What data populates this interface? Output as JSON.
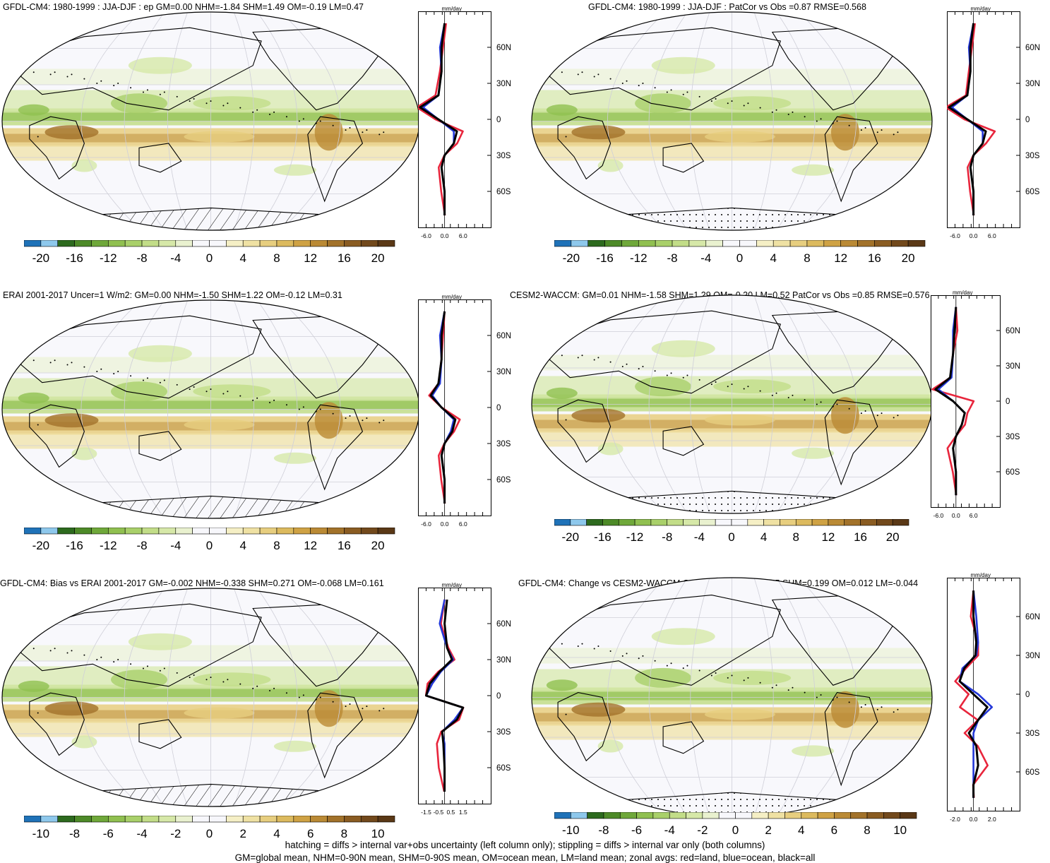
{
  "colors": {
    "negative": [
      "#1f72b8",
      "#8ec8ec",
      "#2d6a1e",
      "#4d8a28",
      "#6fa83a",
      "#90c050",
      "#a9d06a",
      "#c2dd88",
      "#d6e8a8",
      "#e9f1cf",
      "#f7f7fb"
    ],
    "positive": [
      "#f7f7fb",
      "#f5efc5",
      "#efe1a3",
      "#e7ce7f",
      "#dcba5e",
      "#cfa244",
      "#ba8a35",
      "#a2722a",
      "#8a5c22",
      "#72491c",
      "#5a3816"
    ],
    "land": "#e8253c",
    "ocean": "#2438d8",
    "all": "#000000"
  },
  "scales": {
    "main": [
      "-20",
      "-16",
      "-12",
      "-8",
      "-4",
      "0",
      "4",
      "8",
      "12",
      "16",
      "20"
    ],
    "diff": [
      "-10",
      "-8",
      "-6",
      "-4",
      "-2",
      "0",
      "2",
      "4",
      "6",
      "8",
      "10"
    ]
  },
  "lat_labels": [
    "60N",
    "30N",
    "0",
    "30S",
    "60S"
  ],
  "units": "mm/day",
  "panels": [
    {
      "id": "p1",
      "title": "GFDL-CM4: 1980-1999 : JJA-DJF : ep GM=0.00 NHM=-1.84 SHM=1.49 OM=-0.19 LM=0.47",
      "xticks": [
        "-6.0",
        "0.0",
        "6.0"
      ],
      "scale": "main",
      "hatch": true
    },
    {
      "id": "p2",
      "title": "GFDL-CM4: 1980-1999 : JJA-DJF : PatCor vs Obs =0.87 RMSE=0.568",
      "xticks": [
        "-6.0",
        "0.0",
        "6.0"
      ],
      "scale": "main",
      "hatch": false
    },
    {
      "id": "p3",
      "title": "ERAI 2001-2017 Uncer=1 W/m2: GM=0.00 NHM=-1.50 SHM=1.22 OM=-0.12 LM=0.31",
      "xticks": [
        "-6.0",
        "0.0",
        "6.0"
      ],
      "scale": "main",
      "hatch": true
    },
    {
      "id": "p4",
      "title": "CESM2-WACCM: GM=0.01 NHM=-1.58 SHM=1.29 OM=-0.20 LM=0.52 PatCor vs Obs =0.85 RMSE=0.576",
      "xticks": [
        "-6.0",
        "0.0",
        "6.0"
      ],
      "scale": "main",
      "hatch": false
    },
    {
      "id": "p5",
      "title": "GFDL-CM4: Bias vs ERAI 2001-2017 GM=-0.002 NHM=-0.338 SHM=0.271 OM=-0.068 LM=0.161",
      "xticks": [
        "-1.5",
        "-0.5",
        "0.5",
        "1.5"
      ],
      "scale": "diff",
      "hatch": true
    },
    {
      "id": "p6",
      "title": "GFDL-CM4: Change vs CESM2-WACCM GM=-0.004 NHM=-0.255 SHM=0.199 OM=0.012 LM=-0.044",
      "xticks": [
        "-2.0",
        "0.0",
        "2.0"
      ],
      "scale": "diff",
      "hatch": false
    }
  ],
  "footer": {
    "line1": "hatching = diffs > internal var+obs uncertainty (left column only); stippling = diffs > internal var only (both columns)",
    "line2": "GM=global mean, NHM=0-90N mean, SHM=0-90S mean, OM=ocean mean, LM=land mean; zonal avgs: red=land, blue=ocean, black=all"
  },
  "chart_data": [
    {
      "type": "heatmap",
      "title": "GFDL-CM4: 1980-1999 : JJA-DJF : ep GM=0.00 NHM=-1.84 SHM=1.49 OM=-0.19 LM=0.47",
      "colorbar_range": [
        -20,
        20
      ],
      "zonal_mean": {
        "units": "mm/day",
        "lat": [
          80,
          60,
          40,
          20,
          10,
          0,
          -10,
          -20,
          -30,
          -40,
          -60,
          -80
        ],
        "series": [
          {
            "name": "red=land",
            "values": [
              0.5,
              -0.5,
              -1.5,
              -3,
              -9,
              -3,
              6,
              4,
              0,
              -2,
              -1,
              0
            ]
          },
          {
            "name": "blue=ocean",
            "values": [
              0,
              -1.5,
              -1,
              -2,
              -7,
              -2,
              3,
              3,
              0,
              -1,
              0,
              0
            ]
          },
          {
            "name": "black=all",
            "values": [
              0,
              -1,
              -1,
              -2,
              -8,
              -2,
              4,
              3,
              0,
              -1,
              0,
              0
            ]
          }
        ]
      }
    },
    {
      "type": "heatmap",
      "title": "GFDL-CM4: 1980-1999 : JJA-DJF : PatCor vs Obs =0.87 RMSE=0.568",
      "colorbar_range": [
        -20,
        20
      ],
      "zonal_mean": {
        "units": "mm/day",
        "lat": [
          80,
          60,
          40,
          20,
          10,
          0,
          -10,
          -20,
          -30,
          -40,
          -60,
          -80
        ],
        "series": [
          {
            "name": "red=land",
            "values": [
              0.5,
              -0.5,
              -1.5,
              -2.5,
              -9,
              -3,
              7,
              4,
              0,
              -2,
              -1,
              0
            ]
          },
          {
            "name": "blue=ocean",
            "values": [
              0,
              -1.5,
              -1,
              -2,
              -7,
              -2,
              3,
              3,
              0,
              -1,
              0,
              0
            ]
          },
          {
            "name": "black=all",
            "values": [
              0,
              -1,
              -1,
              -2,
              -8,
              -2,
              4,
              3,
              0,
              -1,
              0,
              0
            ]
          }
        ]
      }
    },
    {
      "type": "heatmap",
      "title": "ERAI 2001-2017 Uncer=1 W/m2: GM=0.00 NHM=-1.50 SHM=1.22 OM=-0.12 LM=0.31",
      "colorbar_range": [
        -20,
        20
      ],
      "zonal_mean": {
        "units": "mm/day",
        "lat": [
          80,
          60,
          40,
          20,
          10,
          0,
          -10,
          -20,
          -30,
          -40,
          -60,
          -80
        ],
        "series": [
          {
            "name": "red=land",
            "values": [
              0,
              -0.5,
              -1,
              -2,
              -5,
              -1,
              5,
              3,
              0,
              -2,
              -1,
              0
            ]
          },
          {
            "name": "blue=ocean",
            "values": [
              0,
              -1.5,
              -1,
              -1.5,
              -4,
              -1,
              3,
              2,
              0,
              -1,
              0,
              0
            ]
          },
          {
            "name": "black=all",
            "values": [
              0,
              -1,
              -1,
              -2,
              -4.5,
              -1,
              3.5,
              2.5,
              0,
              -1,
              0,
              0
            ]
          }
        ]
      }
    },
    {
      "type": "heatmap",
      "title": "CESM2-WACCM: GM=0.01 NHM=-1.58 SHM=1.29 OM=-0.20 LM=0.52 PatCor vs Obs =0.85 RMSE=0.576",
      "colorbar_range": [
        -20,
        20
      ],
      "zonal_mean": {
        "units": "mm/day",
        "lat": [
          80,
          60,
          40,
          20,
          10,
          0,
          -10,
          -20,
          -30,
          -40,
          -60,
          -80
        ],
        "series": [
          {
            "name": "red=land",
            "values": [
              0,
              0.5,
              -1,
              -2,
              -8,
              6,
              4,
              3,
              0,
              -3,
              -1,
              0
            ]
          },
          {
            "name": "blue=ocean",
            "values": [
              0,
              -1,
              -1,
              -1.5,
              -6,
              -1,
              3,
              2,
              0,
              -1,
              0,
              0
            ]
          },
          {
            "name": "black=all",
            "values": [
              0,
              -0.5,
              -1,
              -2,
              -7,
              -1,
              3,
              2,
              0,
              -1,
              0,
              0
            ]
          }
        ]
      }
    },
    {
      "type": "heatmap",
      "title": "GFDL-CM4: Bias vs ERAI 2001-2017 GM=-0.002 NHM=-0.338 SHM=0.271 OM=-0.068 LM=0.161",
      "colorbar_range": [
        -10,
        10
      ],
      "zonal_mean": {
        "units": "mm/day",
        "lat": [
          80,
          60,
          40,
          30,
          20,
          10,
          0,
          -10,
          -20,
          -30,
          -40,
          -60,
          -80
        ],
        "series": [
          {
            "name": "red=land",
            "values": [
              0,
              -0.3,
              0.3,
              0.8,
              -0.5,
              -1.4,
              -1.5,
              1.5,
              1.2,
              -0.3,
              -0.6,
              -0.5,
              0
            ]
          },
          {
            "name": "blue=ocean",
            "values": [
              0,
              -0.4,
              0.2,
              0.7,
              -0.3,
              -1,
              -1.5,
              1.5,
              0.8,
              -0.2,
              0,
              0,
              0
            ]
          },
          {
            "name": "black=all",
            "values": [
              0.2,
              0,
              0.2,
              0.6,
              -0.4,
              -1.2,
              -1.5,
              1.5,
              1,
              -0.2,
              -0.1,
              0,
              0
            ]
          }
        ]
      }
    },
    {
      "type": "heatmap",
      "title": "GFDL-CM4: Change vs CESM2-WACCM GM=-0.004 NHM=-0.255 SHM=0.199 OM=0.012 LM=-0.044",
      "colorbar_range": [
        -10,
        10
      ],
      "zonal_mean": {
        "units": "mm/day",
        "lat": [
          80,
          60,
          40,
          30,
          20,
          10,
          0,
          -10,
          -20,
          -30,
          -40,
          -55,
          -70,
          -80
        ],
        "series": [
          {
            "name": "red=land",
            "values": [
              0,
              -0.3,
              0.5,
              0.5,
              -0.8,
              -2,
              -0.5,
              -1.5,
              0.5,
              -1,
              0.5,
              1.5,
              0,
              0
            ]
          },
          {
            "name": "blue=ocean",
            "values": [
              0,
              0.3,
              0.5,
              0.3,
              -1.2,
              -1.5,
              0.5,
              2,
              0.5,
              0,
              0,
              0,
              0,
              0
            ]
          },
          {
            "name": "black=all",
            "values": [
              0,
              0,
              0.3,
              0.2,
              -1,
              -1.5,
              0,
              1.5,
              0.5,
              -0.5,
              0.3,
              0.5,
              0,
              0
            ]
          }
        ]
      }
    }
  ]
}
